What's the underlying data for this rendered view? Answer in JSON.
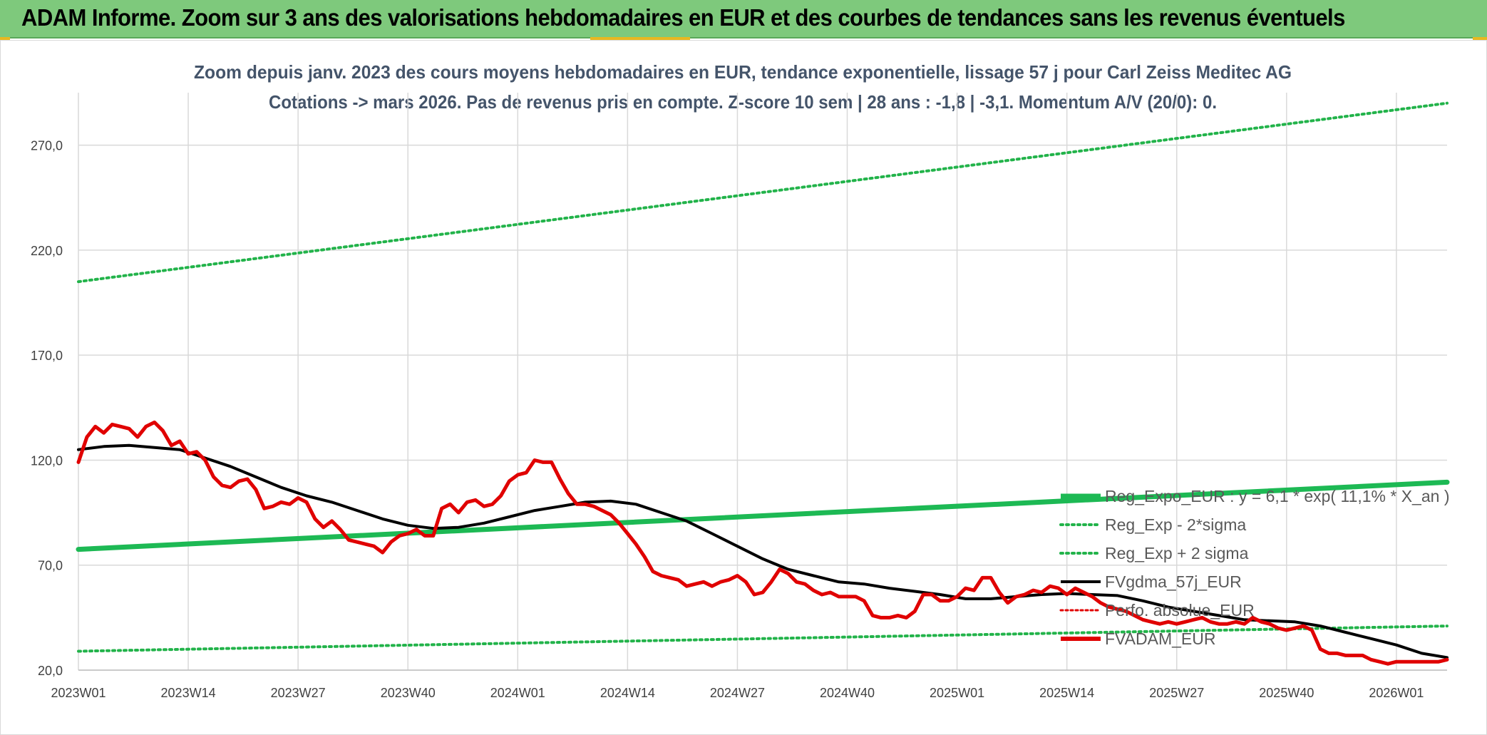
{
  "header": {
    "title": "ADAM Informe. Zoom sur 3 ans des valorisations hebdomadaires en EUR et des courbes de tendances sans les revenus éventuels"
  },
  "colors": {
    "banner": "#7ec97c",
    "reg_expo": "#1db954",
    "reg_sigma": "#22b34a",
    "fvgdma": "#000000",
    "perfo": "#e00000",
    "fvadam": "#e00000",
    "grid": "#d9d9d9",
    "title_text": "#44546a"
  },
  "chart_data": {
    "type": "line",
    "title_line1": "Zoom depuis janv. 2023 des cours moyens hebdomadaires en EUR, tendance exponentielle, lissage 57 j pour Carl Zeiss Meditec AG",
    "title_line2": "Cotations -> mars 2026. Pas de revenus pris en compte. Z-score 10 sem | 28 ans : -1,8 | -3,1. Momentum A/V (20/0): 0.",
    "xlabel": "",
    "ylabel": "",
    "ylim": [
      20,
      295
    ],
    "y_ticks": [
      {
        "value": 20,
        "label": "20,0"
      },
      {
        "value": 70,
        "label": "70,0"
      },
      {
        "value": 120,
        "label": "120,0"
      },
      {
        "value": 170,
        "label": "170,0"
      },
      {
        "value": 220,
        "label": "220,0"
      },
      {
        "value": 270,
        "label": "270,0"
      }
    ],
    "x_range": [
      0,
      162
    ],
    "x_ticks": [
      {
        "index": 0,
        "label": "2023W01"
      },
      {
        "index": 13,
        "label": "2023W14"
      },
      {
        "index": 26,
        "label": "2023W27"
      },
      {
        "index": 39,
        "label": "2023W40"
      },
      {
        "index": 52,
        "label": "2024W01"
      },
      {
        "index": 65,
        "label": "2024W14"
      },
      {
        "index": 78,
        "label": "2024W27"
      },
      {
        "index": 91,
        "label": "2024W40"
      },
      {
        "index": 104,
        "label": "2025W01"
      },
      {
        "index": 117,
        "label": "2025W14"
      },
      {
        "index": 130,
        "label": "2025W27"
      },
      {
        "index": 143,
        "label": "2025W40"
      },
      {
        "index": 156,
        "label": "2026W01"
      }
    ],
    "legend_position": "bottom-right",
    "series": [
      {
        "name": "Reg_Expo_EUR : y = 6,1 * exp( 11,1% * X_an )",
        "style": "solid-thick",
        "x": [
          0,
          162
        ],
        "values": [
          77.5,
          109.5
        ]
      },
      {
        "name": "Reg_Exp - 2*sigma",
        "style": "dotted",
        "x": [
          0,
          162
        ],
        "values": [
          29,
          41
        ]
      },
      {
        "name": "Reg_Exp + 2 sigma",
        "style": "dotted",
        "x": [
          0,
          162
        ],
        "values": [
          205,
          290
        ]
      },
      {
        "name": "FVgdma_57j_EUR",
        "style": "solid-black",
        "x": [
          0,
          3,
          6,
          9,
          12,
          15,
          18,
          21,
          24,
          27,
          30,
          33,
          36,
          39,
          42,
          45,
          48,
          51,
          54,
          57,
          60,
          63,
          66,
          69,
          72,
          75,
          78,
          81,
          84,
          87,
          90,
          93,
          96,
          99,
          102,
          105,
          108,
          111,
          114,
          117,
          120,
          123,
          126,
          129,
          132,
          135,
          138,
          141,
          144,
          147,
          150,
          153,
          156,
          159,
          162
        ],
        "values": [
          125,
          126.5,
          127,
          126,
          125,
          121,
          117,
          112,
          107,
          103,
          100,
          96,
          92,
          89,
          87.5,
          88,
          90,
          93,
          96,
          98,
          100,
          100.5,
          99,
          95,
          91,
          85,
          79,
          73,
          68,
          65,
          62,
          61,
          59,
          57.5,
          56,
          54,
          54,
          55,
          56,
          56.5,
          56,
          55.5,
          53,
          50,
          48,
          46,
          44,
          43.5,
          43,
          41,
          38,
          35,
          32,
          28,
          26
        ]
      },
      {
        "name": "Perfo. absolue_EUR",
        "style": "dotted-red",
        "x": [],
        "values": []
      },
      {
        "name": "FVADAM_EUR",
        "style": "solid-red",
        "x": [
          0,
          1,
          2,
          3,
          4,
          5,
          6,
          7,
          8,
          9,
          10,
          11,
          12,
          13,
          14,
          15,
          16,
          17,
          18,
          19,
          20,
          21,
          22,
          23,
          24,
          25,
          26,
          27,
          28,
          29,
          30,
          31,
          32,
          33,
          34,
          35,
          36,
          37,
          38,
          39,
          40,
          41,
          42,
          43,
          44,
          45,
          46,
          47,
          48,
          49,
          50,
          51,
          52,
          53,
          54,
          55,
          56,
          57,
          58,
          59,
          60,
          61,
          62,
          63,
          64,
          65,
          66,
          67,
          68,
          69,
          70,
          71,
          72,
          73,
          74,
          75,
          76,
          77,
          78,
          79,
          80,
          81,
          82,
          83,
          84,
          85,
          86,
          87,
          88,
          89,
          90,
          91,
          92,
          93,
          94,
          95,
          96,
          97,
          98,
          99,
          100,
          101,
          102,
          103,
          104,
          105,
          106,
          107,
          108,
          109,
          110,
          111,
          112,
          113,
          114,
          115,
          116,
          117,
          118,
          119,
          120,
          121,
          122,
          123,
          124,
          125,
          126,
          127,
          128,
          129,
          130,
          131,
          132,
          133,
          134,
          135,
          136,
          137,
          138,
          139,
          140,
          141,
          142,
          143,
          144,
          145,
          146,
          147,
          148,
          149,
          150,
          151,
          152,
          153,
          154,
          155,
          156,
          157,
          158,
          159,
          160,
          161,
          162
        ],
        "values": [
          119,
          131,
          136,
          133,
          137,
          136,
          135,
          131,
          136,
          138,
          134,
          127,
          129,
          123,
          124,
          120,
          112,
          108,
          107,
          110,
          111,
          106,
          97,
          98,
          100,
          99,
          102,
          100,
          92,
          88,
          91,
          87,
          82,
          81,
          80,
          79,
          76,
          81,
          84,
          85,
          87,
          84,
          84,
          97,
          99,
          95,
          100,
          101,
          98,
          99,
          103,
          110,
          113,
          114,
          120,
          119,
          119,
          111,
          104,
          99,
          99,
          98,
          96,
          94,
          90,
          85,
          80,
          74,
          67,
          65,
          64,
          63,
          60,
          61,
          62,
          60,
          62,
          63,
          65,
          62,
          56,
          57,
          62,
          68,
          66,
          62,
          61,
          58,
          56,
          57,
          55,
          55,
          55,
          53,
          46,
          45,
          45,
          46,
          45,
          48,
          56,
          56,
          53,
          53,
          55,
          59,
          58,
          64,
          64,
          57,
          52,
          55,
          56,
          58,
          57,
          60,
          59,
          56,
          59,
          57,
          55,
          52,
          50,
          49,
          48,
          46,
          44,
          43,
          42,
          43,
          42,
          43,
          44,
          45,
          43,
          42,
          42,
          43,
          42,
          45,
          43,
          42,
          40,
          39,
          40,
          41,
          39,
          30,
          28,
          28,
          27,
          27,
          27,
          25,
          24,
          23,
          24,
          24,
          24,
          24,
          24,
          24,
          25
        ]
      }
    ]
  }
}
